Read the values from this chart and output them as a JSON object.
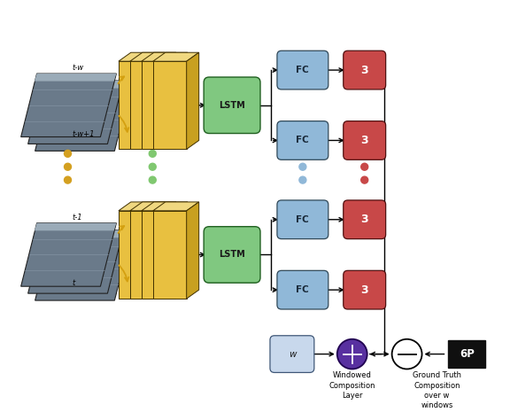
{
  "fig_width": 5.76,
  "fig_height": 4.74,
  "bg_color": "#ffffff",
  "cnn_color_face": "#e8c040",
  "cnn_color_side": "#c8a020",
  "cnn_color_top": "#f0d880",
  "cnn_edge_color": "#403000",
  "lstm_color": "#80c880",
  "lstm_edge_color": "#206020",
  "fc_color": "#90b8d8",
  "fc_edge_color": "#304858",
  "out3_color": "#c84848",
  "out3_edge_color": "#501010",
  "w_color": "#c8d8ec",
  "w_edge_color": "#405878",
  "compose_color": "#5830a0",
  "minus_color": "#ffffff",
  "minus_edge_color": "#000000",
  "sixp_color": "#101010",
  "sixp_text_color": "#ffffff",
  "dot_colors": {
    "img": "#d4a020",
    "cnn": "#80c870",
    "fc": "#90b8d8",
    "out": "#c84848"
  },
  "labels": {
    "t_minus_w": "t-w",
    "t_minus_w1": "t-w+1",
    "t_minus_1": "t-1",
    "t": "t",
    "lstm": "LSTM",
    "fc": "FC",
    "out3": "3",
    "w_label": "w",
    "sixp": "6P",
    "windowed_comp": "Windowed\nComposition\nLayer",
    "gt_comp": "Ground Truth\nComposition\nover w\nwindows"
  },
  "font_size_label": 6,
  "font_size_box": 7.5,
  "font_size_out": 9
}
